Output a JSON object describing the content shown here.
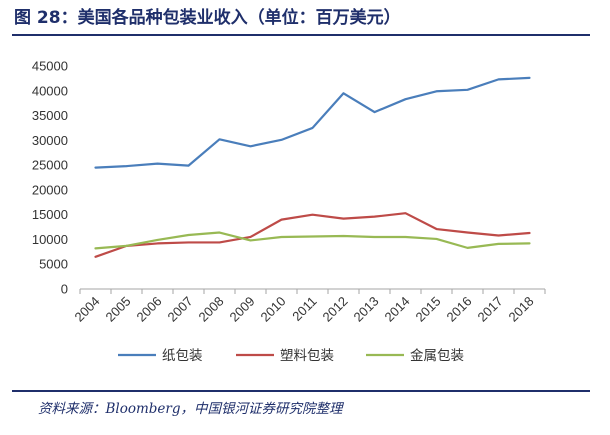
{
  "figure": {
    "title": "图 28：美国各品种包装业收入（单位：百万美元）",
    "source": "资料来源：Bloomberg，中国银河证券研究院整理"
  },
  "chart_data": {
    "type": "line",
    "x": [
      "2004",
      "2005",
      "2006",
      "2007",
      "2008",
      "2009",
      "2010",
      "2011",
      "2012",
      "2013",
      "2014",
      "2015",
      "2016",
      "2017",
      "2018"
    ],
    "ylim": [
      0,
      45000
    ],
    "yticks": [
      0,
      5000,
      10000,
      15000,
      20000,
      25000,
      30000,
      35000,
      40000,
      45000
    ],
    "grid": false,
    "legend_position": "bottom",
    "series": [
      {
        "name": "纸包装",
        "color": "#4a7ebb",
        "values": [
          24500,
          24800,
          25300,
          24900,
          30200,
          28800,
          30100,
          32500,
          39500,
          35700,
          38300,
          39900,
          40200,
          42300,
          42600
        ]
      },
      {
        "name": "塑料包装",
        "color": "#be4b48",
        "values": [
          6500,
          8700,
          9200,
          9400,
          9400,
          10500,
          14000,
          15000,
          14200,
          14600,
          15300,
          12100,
          11400,
          10800,
          11300
        ]
      },
      {
        "name": "金属包装",
        "color": "#98b954",
        "values": [
          8200,
          8700,
          9900,
          10900,
          11400,
          9800,
          10500,
          10600,
          10700,
          10500,
          10500,
          10100,
          8300,
          9100,
          9200
        ]
      }
    ]
  }
}
